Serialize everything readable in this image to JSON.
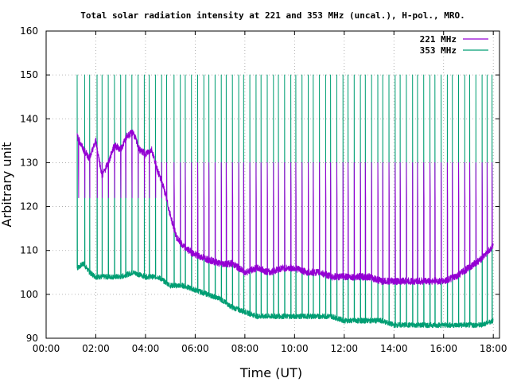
{
  "chart_data": {
    "type": "line",
    "title": "Total solar radiation intensity at 221 and 353 MHz (uncal.), H-pol., MRO.",
    "xlabel": "Time (UT)",
    "ylabel": "Arbitrary unit",
    "xlim": [
      0,
      18.25
    ],
    "ylim": [
      90,
      160
    ],
    "x_unit": "hours UT",
    "xticks": [
      "00:00",
      "02:00",
      "04:00",
      "06:00",
      "08:00",
      "10:00",
      "12:00",
      "14:00",
      "16:00",
      "18:00"
    ],
    "yticks": [
      "90",
      "100",
      "110",
      "120",
      "130",
      "140",
      "150",
      "160"
    ],
    "grid": true,
    "legend_position": "top-right",
    "series": [
      {
        "name": "221 MHz",
        "color": "#9400d3",
        "x": [
          1.25,
          1.5,
          1.75,
          2.0,
          2.25,
          2.5,
          2.75,
          3.0,
          3.25,
          3.5,
          3.75,
          4.0,
          4.25,
          4.5,
          4.75,
          5.0,
          5.25,
          5.5,
          5.75,
          6.0,
          6.5,
          7.0,
          7.5,
          8.0,
          8.5,
          9.0,
          9.5,
          10.0,
          10.5,
          11.0,
          11.5,
          12.0,
          12.5,
          13.0,
          13.5,
          14.0,
          14.5,
          15.0,
          15.5,
          16.0,
          16.5,
          17.0,
          17.5,
          18.0
        ],
        "values": [
          136,
          133,
          131,
          135,
          127,
          130,
          134,
          133,
          136,
          137,
          133,
          132,
          133,
          128,
          124,
          118,
          113,
          111,
          110,
          109,
          108,
          107,
          107,
          105,
          106,
          105,
          106,
          106,
          105,
          105,
          104,
          104,
          104,
          104,
          103,
          103,
          103,
          103,
          103,
          103,
          104,
          106,
          108,
          111
        ],
        "spike_peaks_x": [
          1.3,
          1.55,
          1.75,
          2.05,
          2.25,
          2.5,
          2.75,
          3.0,
          3.2,
          3.45,
          3.7,
          3.95,
          4.15,
          4.4,
          4.65,
          4.85,
          5.15,
          5.4,
          5.6,
          5.85,
          6.1,
          6.35,
          6.55,
          6.8,
          7.05,
          7.25,
          7.5,
          7.75,
          7.95,
          8.2,
          8.45,
          8.65,
          8.9,
          9.15,
          9.35,
          9.6,
          9.85,
          10.05,
          10.3,
          10.55,
          10.75,
          11.0,
          11.25,
          11.45,
          11.7,
          11.95,
          12.15,
          12.4,
          12.65,
          12.85,
          13.1,
          13.35,
          13.55,
          13.8,
          14.05,
          14.25,
          14.5,
          14.75,
          14.95,
          15.2,
          15.45,
          15.65,
          15.9,
          16.15,
          16.35,
          16.6,
          16.85,
          17.05,
          17.3,
          17.55,
          17.75,
          17.95
        ],
        "spike_peak_value": 130,
        "spike_dip_value": 122
      },
      {
        "name": "353 MHz",
        "color": "#009e73",
        "x": [
          1.25,
          1.5,
          1.75,
          2.0,
          2.5,
          3.0,
          3.5,
          4.0,
          4.5,
          5.0,
          5.5,
          6.0,
          6.5,
          7.0,
          7.5,
          8.0,
          8.5,
          9.0,
          9.5,
          10.0,
          10.5,
          11.0,
          11.5,
          12.0,
          12.5,
          13.0,
          13.5,
          14.0,
          14.5,
          15.0,
          15.5,
          16.0,
          16.5,
          17.0,
          17.5,
          18.0
        ],
        "values": [
          106,
          107,
          105,
          104,
          104,
          104,
          105,
          104,
          104,
          102,
          102,
          101,
          100,
          99,
          97,
          96,
          95,
          95,
          95,
          95,
          95,
          95,
          95,
          94,
          94,
          94,
          94,
          93,
          93,
          93,
          93,
          93,
          93,
          93,
          93,
          94
        ],
        "spike_peaks_x": [
          1.25,
          1.55,
          1.75,
          2.05,
          2.25,
          2.5,
          2.75,
          3.0,
          3.2,
          3.45,
          3.7,
          3.95,
          4.15,
          4.4,
          4.65,
          4.85,
          5.15,
          5.4,
          5.6,
          5.85,
          6.1,
          6.35,
          6.55,
          6.8,
          7.05,
          7.25,
          7.5,
          7.75,
          7.95,
          8.2,
          8.45,
          8.65,
          8.9,
          9.15,
          9.35,
          9.6,
          9.85,
          10.05,
          10.3,
          10.55,
          10.75,
          11.0,
          11.25,
          11.45,
          11.7,
          11.95,
          12.15,
          12.4,
          12.65,
          12.85,
          13.1,
          13.35,
          13.55,
          13.8,
          14.05,
          14.25,
          14.5,
          14.75,
          14.95,
          15.2,
          15.45,
          15.65,
          15.9,
          16.15,
          16.35,
          16.6,
          16.85,
          17.05,
          17.3,
          17.55,
          17.75,
          17.95
        ],
        "spike_peak_value": 150
      }
    ]
  }
}
